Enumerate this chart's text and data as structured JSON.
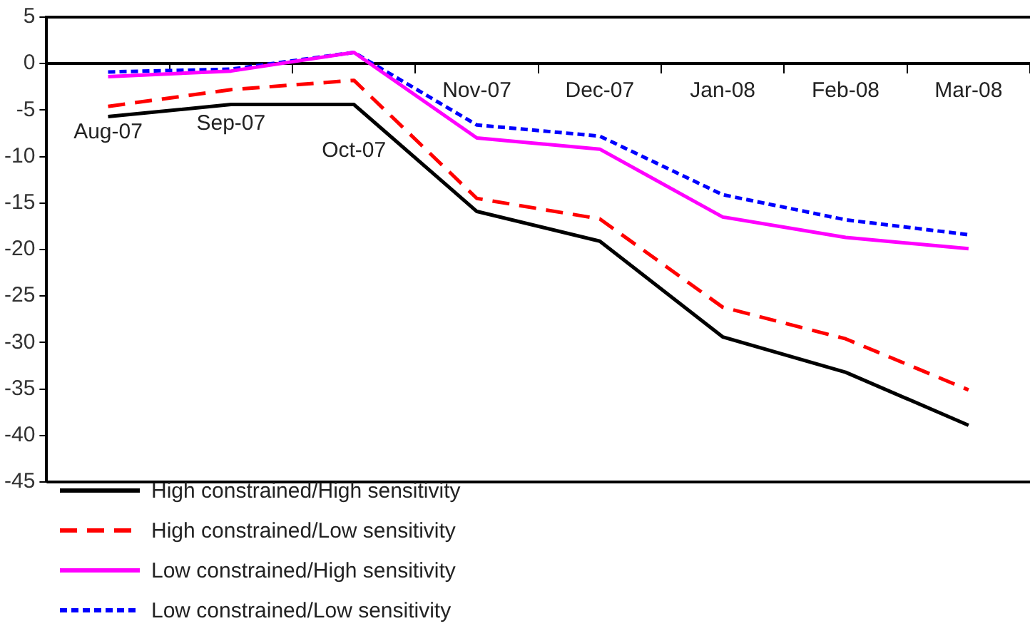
{
  "chart_data": {
    "type": "line",
    "categories": [
      "Aug-07",
      "Sep-07",
      "Oct-07",
      "Nov-07",
      "Dec-07",
      "Jan-08",
      "Feb-08",
      "Mar-08"
    ],
    "ylim": [
      -45,
      5
    ],
    "yticks": [
      5,
      0,
      -5,
      -10,
      -15,
      -20,
      -25,
      -30,
      -35,
      -40,
      -45
    ],
    "grid": false,
    "legend": "bottom left",
    "marker": "none",
    "series": [
      {
        "name": "High constrained/High sensitivity",
        "color": "#000000",
        "line_style": "solid",
        "values": [
          -5.7,
          -4.4,
          -4.4,
          -15.9,
          -19.1,
          -29.4,
          -33.2,
          -38.9
        ]
      },
      {
        "name": "High constrained/Low sensitivity",
        "color": "#ff0000",
        "line_style": "dashed",
        "values": [
          -4.6,
          -2.8,
          -1.8,
          -14.5,
          -16.7,
          -26.2,
          -29.6,
          -35.1
        ]
      },
      {
        "name": "Low constrained/High sensitivity",
        "color": "#ff00ff",
        "line_style": "solid",
        "values": [
          -1.4,
          -0.8,
          1.2,
          -8.0,
          -9.2,
          -16.5,
          -18.7,
          -19.9
        ]
      },
      {
        "name": "Low constrained/Low sensitivity",
        "color": "#0000ff",
        "line_style": "dotted",
        "values": [
          -0.9,
          -0.6,
          1.2,
          -6.6,
          -7.8,
          -14.1,
          -16.8,
          -18.4
        ]
      }
    ]
  }
}
